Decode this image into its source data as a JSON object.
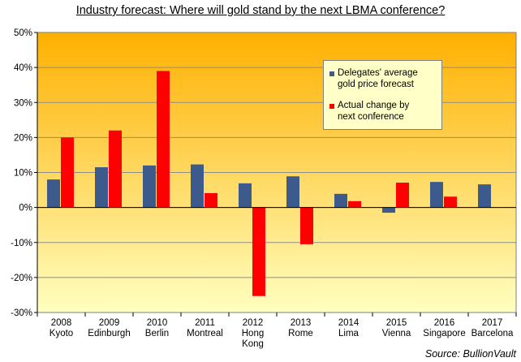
{
  "title": "Industry forecast: Where will gold stand by the next LBMA conference?",
  "source": "Source:  BullionVault",
  "colors": {
    "forecast": "#3c5a8c",
    "actual": "#ff0000",
    "bg_top": "#ffb000",
    "bg_bottom": "#ffffc0"
  },
  "chart_data": {
    "type": "bar",
    "title": "Industry forecast: Where will gold stand by the next LBMA conference?",
    "xlabel": "",
    "ylabel": "",
    "ylim": [
      -30,
      50
    ],
    "yticks": [
      "50%",
      "40%",
      "30%",
      "20%",
      "10%",
      "0%",
      "-10%",
      "-20%",
      "-30%"
    ],
    "ytick_values": [
      50,
      40,
      30,
      20,
      10,
      0,
      -10,
      -20,
      -30
    ],
    "categories": [
      [
        "2008",
        "Kyoto"
      ],
      [
        "2009",
        "Edinburgh"
      ],
      [
        "2010",
        "Berlin"
      ],
      [
        "2011",
        "Montreal"
      ],
      [
        "2012",
        "Hong",
        "Kong"
      ],
      [
        "2013",
        "Rome"
      ],
      [
        "2014",
        "Lima"
      ],
      [
        "2015",
        "Vienna"
      ],
      [
        "2016",
        "Singapore"
      ],
      [
        "2017",
        "Barcelona"
      ]
    ],
    "series": [
      {
        "name": "Delegates' average gold price forecast",
        "color": "#3c5a8c",
        "values": [
          8,
          11.5,
          12,
          12.3,
          6.9,
          8.9,
          3.9,
          -1.5,
          7.3,
          6.6
        ]
      },
      {
        "name": "Actual change by next conference",
        "color": "#ff0000",
        "values": [
          20,
          22,
          39,
          4.1,
          -25.3,
          -10.5,
          1.8,
          7.1,
          3.1,
          null
        ]
      }
    ],
    "legend": {
      "position": "top-right",
      "items": [
        [
          "Delegates' average",
          "gold price forecast"
        ],
        [
          "Actual change by",
          "next conference"
        ]
      ]
    },
    "grid": true
  }
}
